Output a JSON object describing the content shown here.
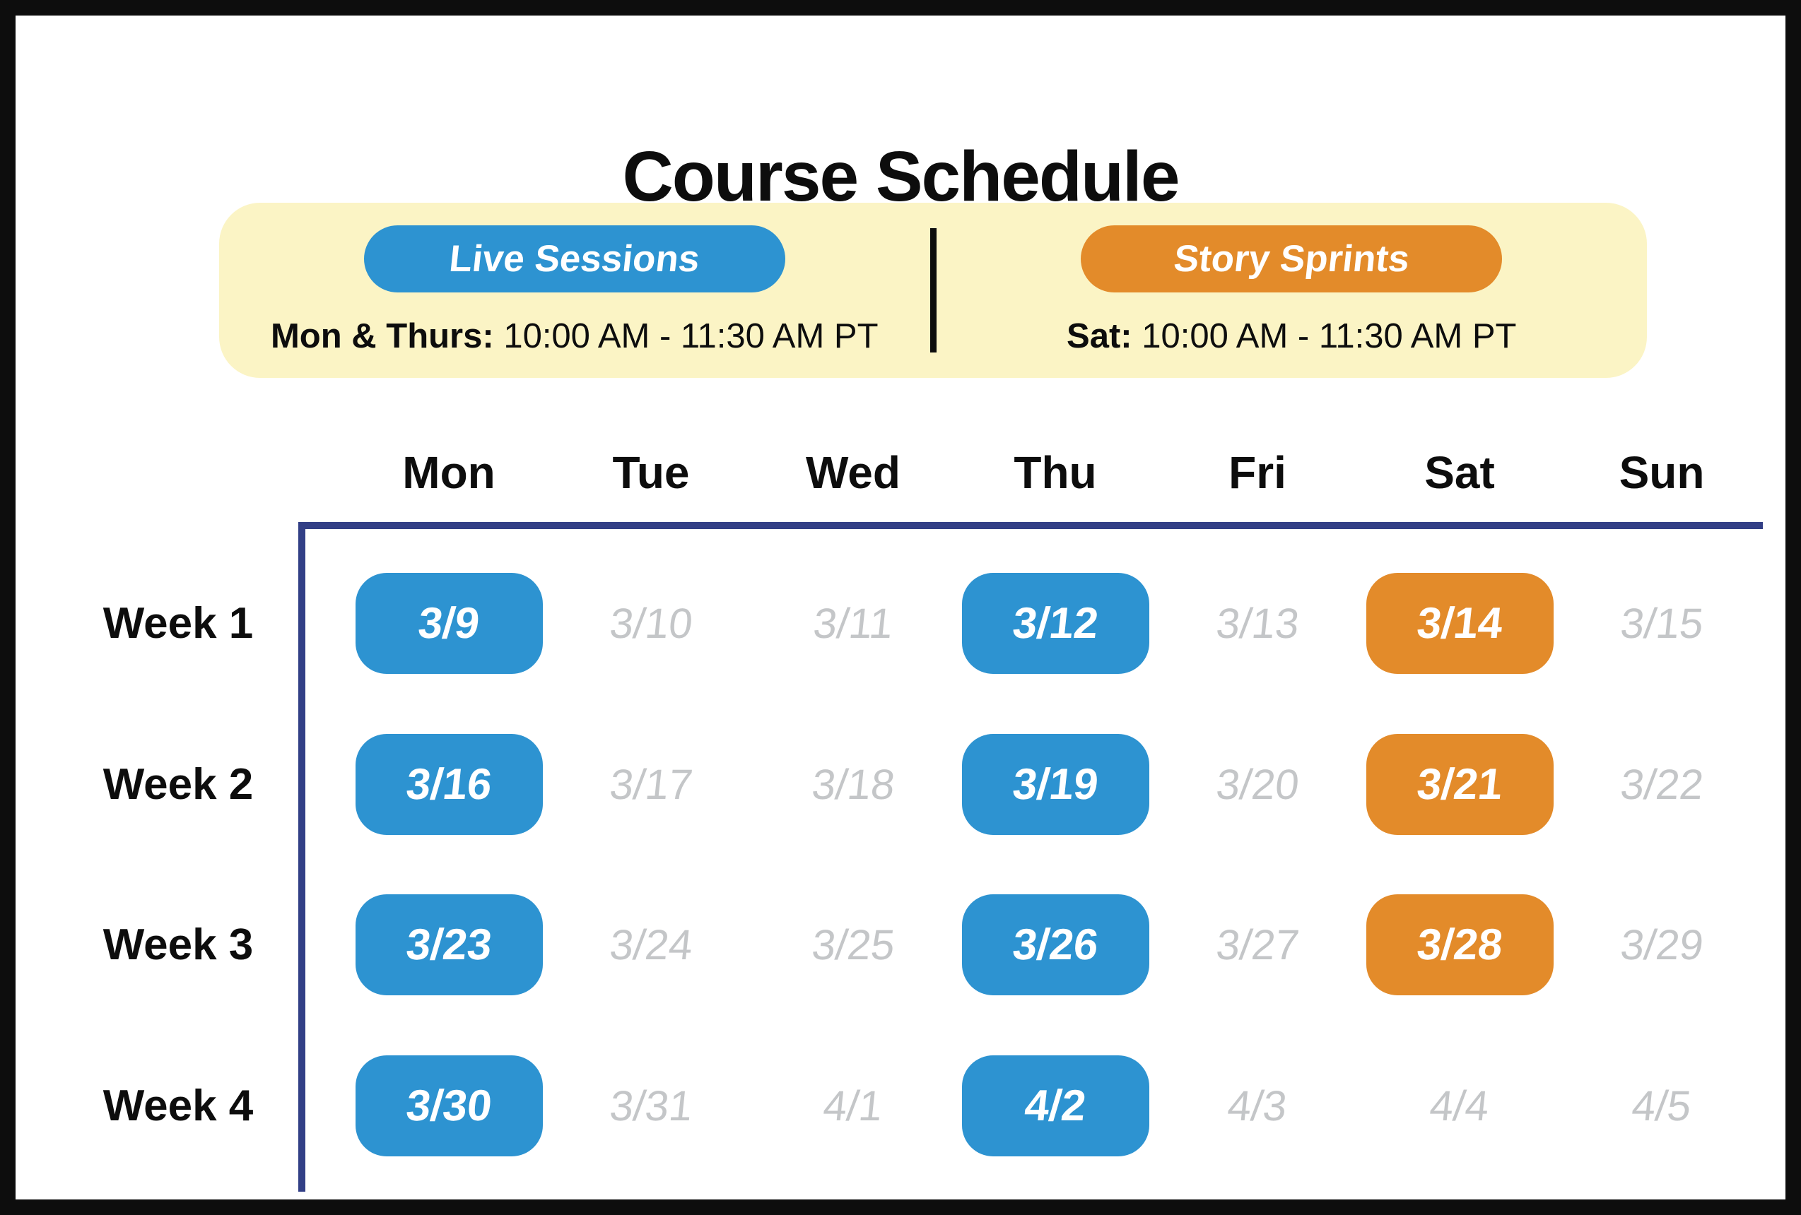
{
  "title": "Course Schedule",
  "colors": {
    "live_session": "#2d93d1",
    "story_sprint": "#e38b2a",
    "legend_bg": "#fbf4c5",
    "grid_border": "#323f86",
    "inactive_date": "#c4c6c8"
  },
  "legend": {
    "live": {
      "label": "Live Sessions",
      "days": "Mon & Thurs:",
      "time": " 10:00 AM - 11:30 AM PT"
    },
    "sprint": {
      "label": "Story Sprints",
      "days": "Sat:",
      "time": " 10:00 AM - 11:30 AM PT"
    }
  },
  "calendar": {
    "day_headers": [
      "Mon",
      "Tue",
      "Wed",
      "Thu",
      "Fri",
      "Sat",
      "Sun"
    ],
    "weeks": [
      {
        "label": "Week 1",
        "days": [
          {
            "date": "3/9",
            "session": "live"
          },
          {
            "date": "3/10",
            "session": "none"
          },
          {
            "date": "3/11",
            "session": "none"
          },
          {
            "date": "3/12",
            "session": "live"
          },
          {
            "date": "3/13",
            "session": "none"
          },
          {
            "date": "3/14",
            "session": "sprint"
          },
          {
            "date": "3/15",
            "session": "none"
          }
        ]
      },
      {
        "label": "Week 2",
        "days": [
          {
            "date": "3/16",
            "session": "live"
          },
          {
            "date": "3/17",
            "session": "none"
          },
          {
            "date": "3/18",
            "session": "none"
          },
          {
            "date": "3/19",
            "session": "live"
          },
          {
            "date": "3/20",
            "session": "none"
          },
          {
            "date": "3/21",
            "session": "sprint"
          },
          {
            "date": "3/22",
            "session": "none"
          }
        ]
      },
      {
        "label": "Week 3",
        "days": [
          {
            "date": "3/23",
            "session": "live"
          },
          {
            "date": "3/24",
            "session": "none"
          },
          {
            "date": "3/25",
            "session": "none"
          },
          {
            "date": "3/26",
            "session": "live"
          },
          {
            "date": "3/27",
            "session": "none"
          },
          {
            "date": "3/28",
            "session": "sprint"
          },
          {
            "date": "3/29",
            "session": "none"
          }
        ]
      },
      {
        "label": "Week 4",
        "days": [
          {
            "date": "3/30",
            "session": "live"
          },
          {
            "date": "3/31",
            "session": "none"
          },
          {
            "date": "4/1",
            "session": "none"
          },
          {
            "date": "4/2",
            "session": "live"
          },
          {
            "date": "4/3",
            "session": "none"
          },
          {
            "date": "4/4",
            "session": "none"
          },
          {
            "date": "4/5",
            "session": "none"
          }
        ]
      }
    ]
  }
}
